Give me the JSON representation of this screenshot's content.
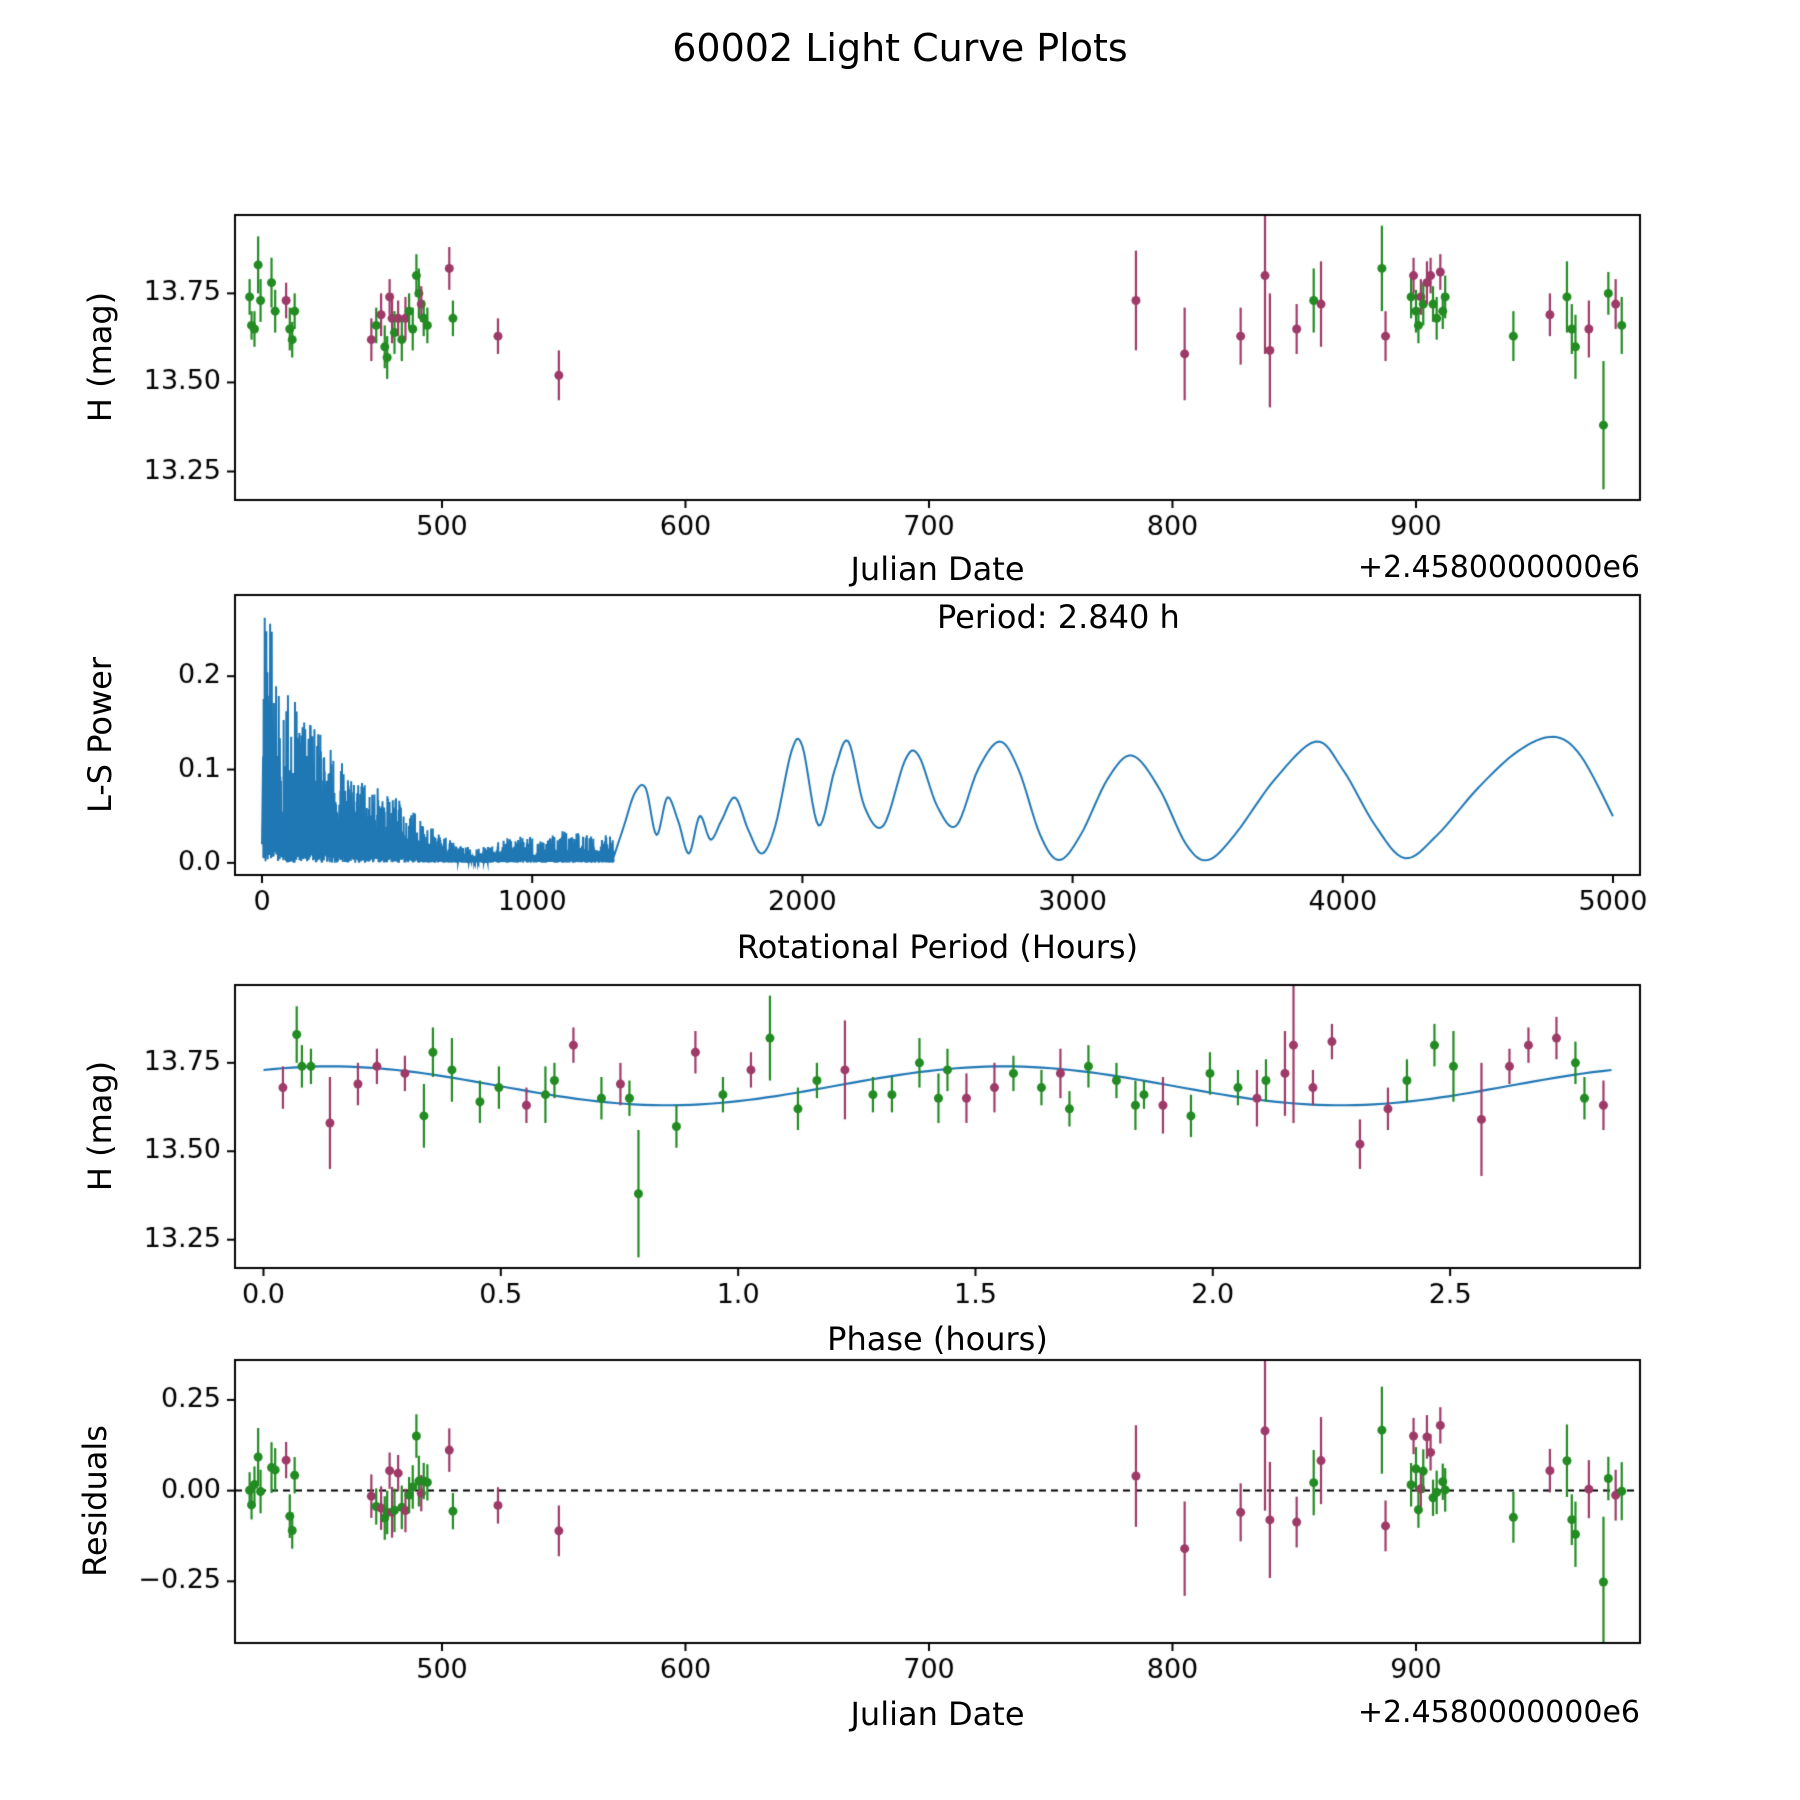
{
  "title": "60002 Light Curve Plots",
  "colors": {
    "series_a": "#228b22",
    "series_b": "#9e3a68",
    "curve": "#1f77b4",
    "axis": "#000000",
    "zero_line": "#000000"
  },
  "fit": {
    "mean": 13.685,
    "amplitude": 0.055,
    "period_hours": 2.84,
    "half_period_hours": 1.42,
    "phase_of_min_hours": 0.85
  },
  "chart_data": [
    {
      "id": "lightcurve",
      "type": "scatter",
      "xlabel": "Julian Date",
      "ylabel": "H (mag)",
      "x_offset_label": "+2.4580000000e6",
      "xlim": [
        415,
        992
      ],
      "ylim": [
        13.17,
        13.97
      ],
      "xticks": {
        "values": [
          500,
          600,
          700,
          800,
          900
        ],
        "labels": [
          "500",
          "600",
          "700",
          "800",
          "900"
        ]
      },
      "yticks": {
        "values": [
          13.25,
          13.5,
          13.75
        ],
        "labels": [
          "13.25",
          "13.50",
          "13.75"
        ]
      }
    },
    {
      "id": "periodogram",
      "type": "line",
      "xlabel": "Rotational Period (Hours)",
      "ylabel": "L-S Power",
      "annotation": "Period: 2.840 h",
      "xlim": [
        -100,
        5100
      ],
      "ylim": [
        -0.013,
        0.287
      ],
      "xticks": {
        "values": [
          0,
          1000,
          2000,
          3000,
          4000,
          5000
        ],
        "labels": [
          "0",
          "1000",
          "2000",
          "3000",
          "4000",
          "5000"
        ]
      },
      "yticks": {
        "values": [
          0.0,
          0.1,
          0.2
        ],
        "labels": [
          "0.0",
          "0.1",
          "0.2"
        ]
      },
      "noise_envelope": [
        [
          0,
          0.275
        ],
        [
          30,
          0.26
        ],
        [
          60,
          0.22
        ],
        [
          100,
          0.19
        ],
        [
          150,
          0.16
        ],
        [
          200,
          0.145
        ],
        [
          260,
          0.12
        ],
        [
          320,
          0.1
        ],
        [
          400,
          0.085
        ],
        [
          480,
          0.075
        ],
        [
          560,
          0.055
        ],
        [
          640,
          0.035
        ],
        [
          720,
          0.02
        ],
        [
          800,
          0.015
        ],
        [
          880,
          0.025
        ],
        [
          960,
          0.03
        ],
        [
          1040,
          0.025
        ],
        [
          1120,
          0.035
        ],
        [
          1200,
          0.03
        ],
        [
          1300,
          0.03
        ]
      ],
      "smooth_points": [
        [
          1300,
          0.005
        ],
        [
          1340,
          0.04
        ],
        [
          1380,
          0.075
        ],
        [
          1420,
          0.08
        ],
        [
          1460,
          0.03
        ],
        [
          1500,
          0.07
        ],
        [
          1540,
          0.045
        ],
        [
          1580,
          0.01
        ],
        [
          1620,
          0.05
        ],
        [
          1660,
          0.025
        ],
        [
          1700,
          0.045
        ],
        [
          1750,
          0.07
        ],
        [
          1800,
          0.035
        ],
        [
          1850,
          0.01
        ],
        [
          1900,
          0.04
        ],
        [
          1960,
          0.12
        ],
        [
          2000,
          0.125
        ],
        [
          2060,
          0.04
        ],
        [
          2120,
          0.1
        ],
        [
          2170,
          0.13
        ],
        [
          2230,
          0.06
        ],
        [
          2300,
          0.04
        ],
        [
          2380,
          0.11
        ],
        [
          2430,
          0.115
        ],
        [
          2500,
          0.06
        ],
        [
          2570,
          0.04
        ],
        [
          2650,
          0.1
        ],
        [
          2730,
          0.13
        ],
        [
          2800,
          0.1
        ],
        [
          2880,
          0.03
        ],
        [
          2950,
          0.003
        ],
        [
          3030,
          0.03
        ],
        [
          3130,
          0.09
        ],
        [
          3220,
          0.115
        ],
        [
          3320,
          0.08
        ],
        [
          3420,
          0.02
        ],
        [
          3500,
          0.003
        ],
        [
          3600,
          0.03
        ],
        [
          3750,
          0.09
        ],
        [
          3900,
          0.13
        ],
        [
          4000,
          0.1
        ],
        [
          4120,
          0.04
        ],
        [
          4230,
          0.005
        ],
        [
          4350,
          0.03
        ],
        [
          4500,
          0.08
        ],
        [
          4650,
          0.12
        ],
        [
          4780,
          0.135
        ],
        [
          4880,
          0.115
        ],
        [
          5000,
          0.05
        ]
      ]
    },
    {
      "id": "phased",
      "type": "scatter-line",
      "xlabel": "Phase (hours)",
      "ylabel": "H (mag)",
      "xlim": [
        -0.06,
        2.9
      ],
      "ylim": [
        13.17,
        13.97
      ],
      "xticks": {
        "values": [
          0.0,
          0.5,
          1.0,
          1.5,
          2.0,
          2.5
        ],
        "labels": [
          "0.0",
          "0.5",
          "1.0",
          "1.5",
          "2.0",
          "2.5"
        ]
      },
      "yticks": {
        "values": [
          13.25,
          13.5,
          13.75
        ],
        "labels": [
          "13.25",
          "13.50",
          "13.75"
        ]
      }
    },
    {
      "id": "residuals",
      "type": "scatter",
      "xlabel": "Julian Date",
      "ylabel": "Residuals",
      "x_offset_label": "+2.4580000000e6",
      "xlim": [
        415,
        992
      ],
      "ylim": [
        -0.42,
        0.36
      ],
      "xticks": {
        "values": [
          500,
          600,
          700,
          800,
          900
        ],
        "labels": [
          "500",
          "600",
          "700",
          "800",
          "900"
        ]
      },
      "yticks": {
        "values": [
          -0.25,
          0.0,
          0.25
        ],
        "labels": [
          "−0.25",
          "0.00",
          "0.25"
        ]
      }
    }
  ],
  "observations_columns": [
    "jd",
    "h_mag",
    "err",
    "phase_hours",
    "series"
  ],
  "observations": [
    [
      421.0,
      13.74,
      0.05,
      0.1,
      "a"
    ],
    [
      421.8,
      13.66,
      0.04,
      1.855,
      "a"
    ],
    [
      423.0,
      13.65,
      0.05,
      0.771,
      "a"
    ],
    [
      424.5,
      13.83,
      0.08,
      0.07,
      "a"
    ],
    [
      425.5,
      13.73,
      0.06,
      1.441,
      "a"
    ],
    [
      430.0,
      13.78,
      0.07,
      0.357,
      "a"
    ],
    [
      431.5,
      13.7,
      0.06,
      2.112,
      "a"
    ],
    [
      436.0,
      13.73,
      0.05,
      1.027,
      "b"
    ],
    [
      437.5,
      13.65,
      0.06,
      2.783,
      "a"
    ],
    [
      438.5,
      13.62,
      0.05,
      1.698,
      "a"
    ],
    [
      439.5,
      13.7,
      0.05,
      0.613,
      "a"
    ],
    [
      471.0,
      13.62,
      0.06,
      2.369,
      "b"
    ],
    [
      473.0,
      13.66,
      0.05,
      1.284,
      "a"
    ],
    [
      475.0,
      13.69,
      0.06,
      0.199,
      "b"
    ],
    [
      476.5,
      13.6,
      0.06,
      1.954,
      "a"
    ],
    [
      477.5,
      13.57,
      0.06,
      0.87,
      "a"
    ],
    [
      478.5,
      13.74,
      0.05,
      2.625,
      "b"
    ],
    [
      479.5,
      13.68,
      0.07,
      1.54,
      "b"
    ],
    [
      480.5,
      13.64,
      0.06,
      0.456,
      "a"
    ],
    [
      482.0,
      13.68,
      0.05,
      2.211,
      "b"
    ],
    [
      483.5,
      13.62,
      0.06,
      1.126,
      "a"
    ],
    [
      485.0,
      13.68,
      0.06,
      0.041,
      "b"
    ],
    [
      486.5,
      13.7,
      0.05,
      1.797,
      "a"
    ],
    [
      488.0,
      13.65,
      0.06,
      0.712,
      "a"
    ],
    [
      489.5,
      13.8,
      0.06,
      2.467,
      "a"
    ],
    [
      490.5,
      13.75,
      0.07,
      1.382,
      "a"
    ],
    [
      491.5,
      13.72,
      0.05,
      0.298,
      "b"
    ],
    [
      492.5,
      13.68,
      0.05,
      2.053,
      "a"
    ],
    [
      494.0,
      13.66,
      0.05,
      0.968,
      "a"
    ],
    [
      503.0,
      13.82,
      0.06,
      2.724,
      "b"
    ],
    [
      504.5,
      13.68,
      0.05,
      1.639,
      "a"
    ],
    [
      523.0,
      13.63,
      0.05,
      0.554,
      "b"
    ],
    [
      548.0,
      13.52,
      0.07,
      2.31,
      "b"
    ],
    [
      785.0,
      13.73,
      0.14,
      1.225,
      "b"
    ],
    [
      805.0,
      13.58,
      0.13,
      0.14,
      "b"
    ],
    [
      828.0,
      13.63,
      0.08,
      1.895,
      "b"
    ],
    [
      838.0,
      13.8,
      0.22,
      2.17,
      "b"
    ],
    [
      840.0,
      13.59,
      0.16,
      2.566,
      "b"
    ],
    [
      851.0,
      13.65,
      0.07,
      1.481,
      "b"
    ],
    [
      858.0,
      13.73,
      0.09,
      0.397,
      "a"
    ],
    [
      861.0,
      13.72,
      0.12,
      2.152,
      "b"
    ],
    [
      886.0,
      13.82,
      0.12,
      1.067,
      "a"
    ],
    [
      887.5,
      13.63,
      0.07,
      2.823,
      "b"
    ],
    [
      898.0,
      13.74,
      0.06,
      1.738,
      "a"
    ],
    [
      899.0,
      13.8,
      0.05,
      0.653,
      "b"
    ],
    [
      900.0,
      13.7,
      0.06,
      2.409,
      "a"
    ],
    [
      901.0,
      13.66,
      0.05,
      1.324,
      "a"
    ],
    [
      902.0,
      13.74,
      0.05,
      0.239,
      "b"
    ],
    [
      903.0,
      13.72,
      0.06,
      1.994,
      "a"
    ],
    [
      904.5,
      13.78,
      0.06,
      0.91,
      "b"
    ],
    [
      906.0,
      13.8,
      0.05,
      2.665,
      "b"
    ],
    [
      907.0,
      13.72,
      0.05,
      1.58,
      "a"
    ],
    [
      908.5,
      13.68,
      0.06,
      0.496,
      "a"
    ],
    [
      910.0,
      13.81,
      0.05,
      2.251,
      "b"
    ],
    [
      911.0,
      13.7,
      0.05,
      1.166,
      "a"
    ],
    [
      912.0,
      13.74,
      0.06,
      0.081,
      "a"
    ],
    [
      940.0,
      13.63,
      0.07,
      1.837,
      "a"
    ],
    [
      955.0,
      13.69,
      0.06,
      0.752,
      "b"
    ],
    [
      962.0,
      13.74,
      0.1,
      2.507,
      "a"
    ],
    [
      964.0,
      13.65,
      0.07,
      1.422,
      "a"
    ],
    [
      965.5,
      13.6,
      0.09,
      0.338,
      "a"
    ],
    [
      971.0,
      13.65,
      0.08,
      2.093,
      "b"
    ],
    [
      977.0,
      13.38,
      0.18,
      0.79,
      "a"
    ],
    [
      979.0,
      13.75,
      0.06,
      2.764,
      "a"
    ],
    [
      982.0,
      13.72,
      0.07,
      1.679,
      "b"
    ],
    [
      984.5,
      13.66,
      0.08,
      0.594,
      "a"
    ]
  ]
}
